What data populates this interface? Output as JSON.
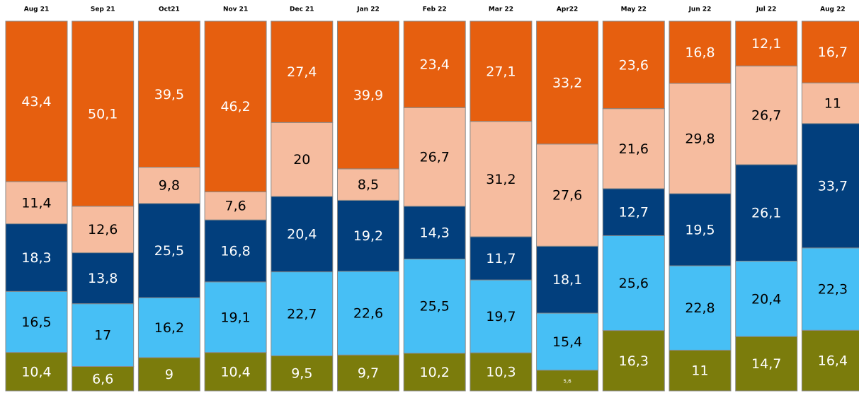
{
  "chart_data": {
    "type": "stacked_bar",
    "categories": [
      "Aug 21",
      "Sep 21",
      "Oct21",
      "Nov 21",
      "Dec 21",
      "Jan 22",
      "Feb 22",
      "Mar 22",
      "Apr22",
      "May 22",
      "Jun 22",
      "Jul 22",
      "Aug 22"
    ],
    "series": [
      {
        "color": "#7b7c0c",
        "values": [
          10.4,
          6.6,
          9,
          10.4,
          9.5,
          9.7,
          10.2,
          10.3,
          5.6,
          16.3,
          11,
          14.7,
          16.4
        ],
        "value_labels": [
          "10,4",
          "6,6",
          "9",
          "10,4",
          "9,5",
          "9,7",
          "10,2",
          "10,3",
          "5,6",
          "16,3",
          "11",
          "14,7",
          "16,4"
        ]
      },
      {
        "color": "#47bff5",
        "values": [
          16.5,
          17,
          16.2,
          19.1,
          22.7,
          22.6,
          25.5,
          19.7,
          15.4,
          25.6,
          22.8,
          20.4,
          22.3
        ],
        "value_labels": [
          "16,5",
          "17",
          "16,2",
          "19,1",
          "22,7",
          "22,6",
          "25,5",
          "19,7",
          "15,4",
          "25,6",
          "22,8",
          "20,4",
          "22,3"
        ]
      },
      {
        "color": "#023f7d",
        "values": [
          18.3,
          13.8,
          25.5,
          16.8,
          20.4,
          19.2,
          14.3,
          11.7,
          18.1,
          12.7,
          19.5,
          26.1,
          33.7
        ],
        "value_labels": [
          "18,3",
          "13,8",
          "25,5",
          "16,8",
          "20,4",
          "19,2",
          "14,3",
          "11,7",
          "18,1",
          "12,7",
          "19,5",
          "26,1",
          "33,7"
        ]
      },
      {
        "color": "#f6bc9f",
        "values": [
          11.4,
          12.6,
          9.8,
          7.6,
          20,
          8.5,
          26.7,
          31.2,
          27.6,
          21.6,
          29.8,
          26.7,
          11
        ],
        "value_labels": [
          "11,4",
          "12,6",
          "9,8",
          "7,6",
          "20",
          "8,5",
          "26,7",
          "31,2",
          "27,6",
          "21,6",
          "29,8",
          "26,7",
          "11"
        ]
      },
      {
        "color": "#e65f0f",
        "values": [
          43.4,
          50.1,
          39.5,
          46.2,
          27.4,
          39.9,
          23.4,
          27.1,
          33.2,
          23.6,
          16.8,
          12.1,
          16.7
        ],
        "value_labels": [
          "43,4",
          "50,1",
          "39,5",
          "46,2",
          "27,4",
          "39,9",
          "23,4",
          "27,1",
          "33,2",
          "23,6",
          "16,8",
          "12,1",
          "16,7"
        ]
      }
    ]
  }
}
